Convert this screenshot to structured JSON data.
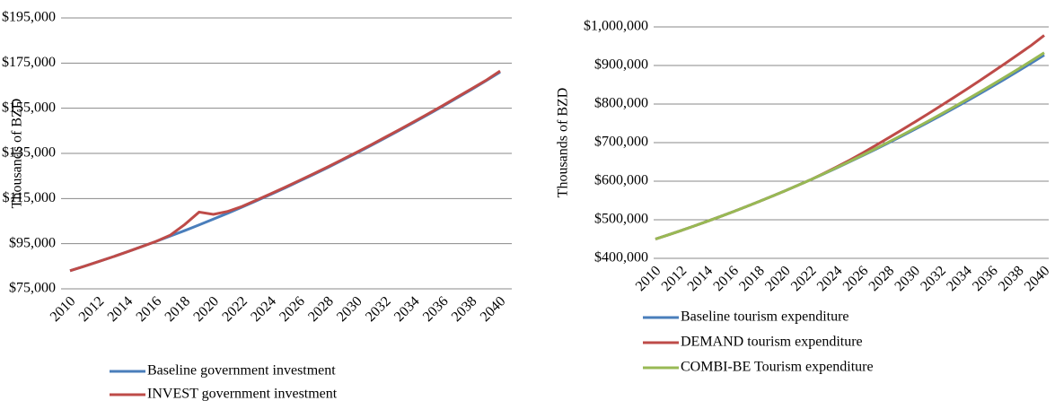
{
  "chart_data": [
    {
      "type": "line",
      "y_label": "Thousands of BZD",
      "categories": [
        "2010",
        null,
        "2012",
        null,
        "2014",
        null,
        "2016",
        null,
        "2018",
        null,
        "2020",
        null,
        "2022",
        null,
        "2024",
        null,
        "2026",
        null,
        "2028",
        null,
        "2030",
        null,
        "2032",
        null,
        "2034",
        null,
        "2036",
        null,
        "2038",
        null,
        "2040"
      ],
      "ylim": [
        75000,
        195000
      ],
      "yticks": [
        {
          "value": 75000,
          "label": "$75,000"
        },
        {
          "value": 95000,
          "label": "$95,000"
        },
        {
          "value": 115000,
          "label": "$115,000"
        },
        {
          "value": 135000,
          "label": "$135,000"
        },
        {
          "value": 155000,
          "label": "$155,000"
        },
        {
          "value": 175000,
          "label": "$175,000"
        },
        {
          "value": 195000,
          "label": "$195,000"
        }
      ],
      "grid": true,
      "legend": "bottom",
      "series": [
        {
          "name": "Baseline government investment",
          "color": "#4a7ebb",
          "values": [
            83000,
            85000,
            87100,
            89200,
            91400,
            93700,
            96000,
            98400,
            100800,
            103300,
            105900,
            108500,
            111200,
            114000,
            116800,
            119700,
            122700,
            125700,
            128800,
            132000,
            135200,
            138500,
            141900,
            145300,
            148800,
            152300,
            155900,
            159600,
            163300,
            167100,
            171000
          ]
        },
        {
          "name": "INVEST government investment",
          "color": "#be4b48",
          "values": [
            83000,
            85000,
            87100,
            89200,
            91400,
            93700,
            96000,
            98800,
            103500,
            109000,
            108000,
            109300,
            111500,
            114300,
            117100,
            120000,
            123000,
            126000,
            129100,
            132300,
            135500,
            138800,
            142200,
            145600,
            149100,
            152600,
            156200,
            159900,
            163600,
            167300,
            171500
          ]
        }
      ]
    },
    {
      "type": "line",
      "y_label": "Thousands of BZD",
      "categories": [
        "2010",
        null,
        "2012",
        null,
        "2014",
        null,
        "2016",
        null,
        "2018",
        null,
        "2020",
        null,
        "2022",
        null,
        "2024",
        null,
        "2026",
        null,
        "2028",
        null,
        "2030",
        null,
        "2032",
        null,
        "2034",
        null,
        "2036",
        null,
        "2038",
        null,
        "2040"
      ],
      "ylim": [
        400000,
        1000000
      ],
      "yticks": [
        {
          "value": 400000,
          "label": "$400,000"
        },
        {
          "value": 500000,
          "label": "$500,000"
        },
        {
          "value": 600000,
          "label": "$600,000"
        },
        {
          "value": 700000,
          "label": "$700,000"
        },
        {
          "value": 800000,
          "label": "$800,000"
        },
        {
          "value": 900000,
          "label": "$900,000"
        },
        {
          "value": 1000000,
          "label": "$1,000,000"
        }
      ],
      "grid": true,
      "legend": "bottom",
      "series": [
        {
          "name": "Baseline tourism expenditure",
          "color": "#4a7ebb",
          "values": [
            450000,
            461000,
            472300,
            484000,
            496000,
            508300,
            521000,
            534000,
            547400,
            561100,
            575100,
            589500,
            604200,
            619300,
            634700,
            650400,
            666500,
            682900,
            699600,
            716700,
            734100,
            751900,
            770000,
            788400,
            807200,
            826300,
            845800,
            865600,
            885700,
            906200,
            927000
          ]
        },
        {
          "name": "DEMAND tourism expenditure",
          "color": "#be4b48",
          "values": [
            450000,
            461000,
            472300,
            484000,
            496000,
            508300,
            521000,
            534000,
            547400,
            561100,
            575100,
            589500,
            604200,
            620300,
            637200,
            654900,
            673500,
            692900,
            712600,
            732700,
            753100,
            773900,
            795000,
            816400,
            838200,
            860300,
            882800,
            905600,
            928700,
            952200,
            978000
          ]
        },
        {
          "name": "COMBI-BE Tourism expenditure",
          "color": "#98b954",
          "values": [
            450000,
            461000,
            472300,
            484000,
            496000,
            508300,
            521000,
            534000,
            547400,
            561100,
            575100,
            589500,
            604200,
            619600,
            635400,
            651400,
            667800,
            684600,
            701600,
            719000,
            736800,
            754900,
            773300,
            792100,
            811200,
            830600,
            850500,
            870700,
            891000,
            911900,
            933000
          ]
        }
      ]
    }
  ]
}
